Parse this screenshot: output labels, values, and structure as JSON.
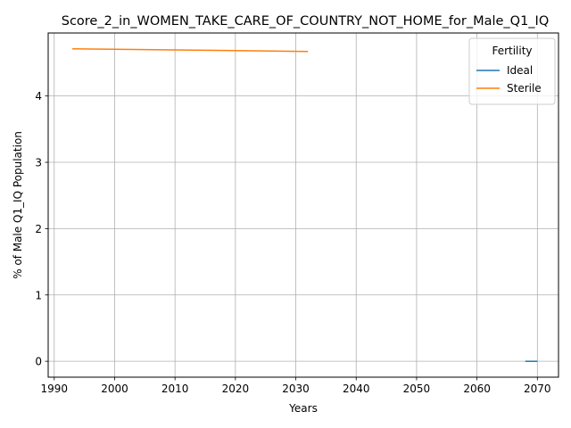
{
  "chart_data": {
    "type": "line",
    "title": "Score_2_in_WOMEN_TAKE_CARE_OF_COUNTRY_NOT_HOME_for_Male_Q1_IQ",
    "xlabel": "Years",
    "ylabel": "% of Male Q1_IQ Population",
    "xlim": [
      1989,
      2073.5
    ],
    "ylim": [
      -0.24,
      4.95
    ],
    "xticks": [
      1990,
      2000,
      2010,
      2020,
      2030,
      2040,
      2050,
      2060,
      2070
    ],
    "yticks": [
      0,
      1,
      2,
      3,
      4
    ],
    "grid": true,
    "legend": {
      "title": "Fertility",
      "placement": "top-right"
    },
    "series": [
      {
        "name": "Ideal",
        "color": "#1f77b4",
        "x": [
          2068,
          2070
        ],
        "y": [
          0.0,
          0.0
        ]
      },
      {
        "name": "Sterile",
        "color": "#ff7f0e",
        "x": [
          1993,
          2000,
          2010,
          2020,
          2032
        ],
        "y": [
          4.71,
          4.705,
          4.695,
          4.685,
          4.67
        ]
      }
    ]
  }
}
